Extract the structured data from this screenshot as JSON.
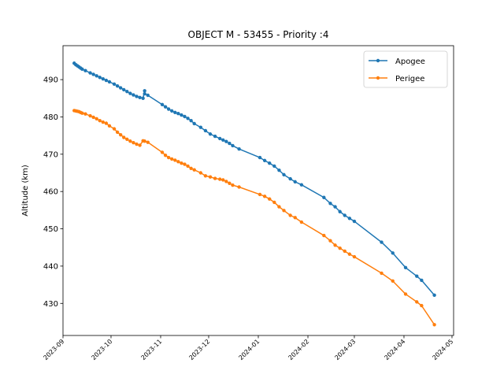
{
  "chart_data": {
    "type": "line",
    "title": "OBJECT M - 53455 - Priority :4",
    "xlabel": "",
    "ylabel": "Altitude (km)",
    "ylim": [
      421.4,
      499.1
    ],
    "xlim": [
      "2023-09-01",
      "2024-05-02"
    ],
    "yticks": [
      430,
      440,
      450,
      460,
      470,
      480,
      490
    ],
    "xticks": [
      "2023-09-01",
      "2023-10-01",
      "2023-11-01",
      "2023-12-01",
      "2024-01-01",
      "2024-02-01",
      "2024-03-01",
      "2024-04-01",
      "2024-05-01"
    ],
    "xtick_labels": [
      "2023-09",
      "2023-10",
      "2023-11",
      "2023-12",
      "2024-01",
      "2024-02",
      "2024-03",
      "2024-04",
      "2024-05"
    ],
    "legend_position": "top-right",
    "grid": false,
    "series": [
      {
        "name": "Apogee",
        "color": "#1f77b4",
        "points": [
          [
            "2023-09-08",
            494.4
          ],
          [
            "2023-09-09",
            494.0
          ],
          [
            "2023-09-10",
            493.7
          ],
          [
            "2023-09-11",
            493.4
          ],
          [
            "2023-09-12",
            493.1
          ],
          [
            "2023-09-13",
            492.8
          ],
          [
            "2023-09-15",
            492.4
          ],
          [
            "2023-09-18",
            491.8
          ],
          [
            "2023-09-20",
            491.4
          ],
          [
            "2023-09-22",
            491.0
          ],
          [
            "2023-09-24",
            490.6
          ],
          [
            "2023-09-26",
            490.2
          ],
          [
            "2023-09-28",
            489.8
          ],
          [
            "2023-09-30",
            489.4
          ],
          [
            "2023-10-03",
            488.8
          ],
          [
            "2023-10-05",
            488.3
          ],
          [
            "2023-10-07",
            487.8
          ],
          [
            "2023-10-09",
            487.3
          ],
          [
            "2023-10-11",
            486.8
          ],
          [
            "2023-10-13",
            486.3
          ],
          [
            "2023-10-15",
            485.9
          ],
          [
            "2023-10-17",
            485.5
          ],
          [
            "2023-10-19",
            485.2
          ],
          [
            "2023-10-21",
            485.0
          ],
          [
            "2023-10-22",
            487.0
          ],
          [
            "2023-10-22",
            486.2
          ],
          [
            "2023-10-24",
            485.8
          ],
          [
            "2023-11-02",
            483.3
          ],
          [
            "2023-11-04",
            482.7
          ],
          [
            "2023-11-06",
            482.1
          ],
          [
            "2023-11-08",
            481.6
          ],
          [
            "2023-11-10",
            481.2
          ],
          [
            "2023-11-12",
            480.9
          ],
          [
            "2023-11-14",
            480.5
          ],
          [
            "2023-11-16",
            480.1
          ],
          [
            "2023-11-18",
            479.6
          ],
          [
            "2023-11-20",
            479.0
          ],
          [
            "2023-11-22",
            478.2
          ],
          [
            "2023-11-26",
            477.2
          ],
          [
            "2023-11-29",
            476.3
          ],
          [
            "2023-12-02",
            475.4
          ],
          [
            "2023-12-05",
            474.8
          ],
          [
            "2023-12-08",
            474.2
          ],
          [
            "2023-12-10",
            473.8
          ],
          [
            "2023-12-12",
            473.4
          ],
          [
            "2023-12-14",
            472.9
          ],
          [
            "2023-12-16",
            472.3
          ],
          [
            "2023-12-20",
            471.4
          ],
          [
            "2024-01-02",
            469.1
          ],
          [
            "2024-01-05",
            468.3
          ],
          [
            "2024-01-08",
            467.6
          ],
          [
            "2024-01-11",
            466.8
          ],
          [
            "2024-01-14",
            465.7
          ],
          [
            "2024-01-17",
            464.5
          ],
          [
            "2024-01-21",
            463.4
          ],
          [
            "2024-01-24",
            462.6
          ],
          [
            "2024-01-28",
            461.8
          ],
          [
            "2024-02-11",
            458.4
          ],
          [
            "2024-02-15",
            456.8
          ],
          [
            "2024-02-18",
            455.9
          ],
          [
            "2024-02-21",
            454.6
          ],
          [
            "2024-02-24",
            453.6
          ],
          [
            "2024-02-27",
            452.8
          ],
          [
            "2024-03-01",
            452.0
          ],
          [
            "2024-03-18",
            446.4
          ],
          [
            "2024-03-25",
            443.5
          ],
          [
            "2024-04-02",
            439.6
          ],
          [
            "2024-04-09",
            437.3
          ],
          [
            "2024-04-12",
            436.2
          ],
          [
            "2024-04-20",
            432.2
          ]
        ]
      },
      {
        "name": "Perigee",
        "color": "#ff7f0e",
        "points": [
          [
            "2023-09-08",
            481.7
          ],
          [
            "2023-09-09",
            481.6
          ],
          [
            "2023-09-10",
            481.5
          ],
          [
            "2023-09-11",
            481.4
          ],
          [
            "2023-09-12",
            481.2
          ],
          [
            "2023-09-13",
            481.0
          ],
          [
            "2023-09-15",
            480.8
          ],
          [
            "2023-09-18",
            480.3
          ],
          [
            "2023-09-20",
            479.9
          ],
          [
            "2023-09-22",
            479.5
          ],
          [
            "2023-09-24",
            479.0
          ],
          [
            "2023-09-26",
            478.6
          ],
          [
            "2023-09-28",
            478.3
          ],
          [
            "2023-09-30",
            477.6
          ],
          [
            "2023-10-03",
            476.8
          ],
          [
            "2023-10-05",
            475.9
          ],
          [
            "2023-10-07",
            475.2
          ],
          [
            "2023-10-09",
            474.5
          ],
          [
            "2023-10-11",
            474.0
          ],
          [
            "2023-10-13",
            473.5
          ],
          [
            "2023-10-15",
            473.1
          ],
          [
            "2023-10-17",
            472.7
          ],
          [
            "2023-10-19",
            472.4
          ],
          [
            "2023-10-21",
            473.6
          ],
          [
            "2023-10-22",
            473.5
          ],
          [
            "2023-10-24",
            473.2
          ],
          [
            "2023-11-02",
            470.5
          ],
          [
            "2023-11-04",
            469.7
          ],
          [
            "2023-11-06",
            469.1
          ],
          [
            "2023-11-08",
            468.7
          ],
          [
            "2023-11-10",
            468.4
          ],
          [
            "2023-11-12",
            468.0
          ],
          [
            "2023-11-14",
            467.6
          ],
          [
            "2023-11-16",
            467.3
          ],
          [
            "2023-11-18",
            466.8
          ],
          [
            "2023-11-20",
            466.2
          ],
          [
            "2023-11-22",
            465.8
          ],
          [
            "2023-11-26",
            465.0
          ],
          [
            "2023-11-29",
            464.2
          ],
          [
            "2023-12-02",
            463.9
          ],
          [
            "2023-12-05",
            463.5
          ],
          [
            "2023-12-08",
            463.3
          ],
          [
            "2023-12-10",
            463.1
          ],
          [
            "2023-12-12",
            462.7
          ],
          [
            "2023-12-14",
            462.2
          ],
          [
            "2023-12-16",
            461.7
          ],
          [
            "2023-12-20",
            461.2
          ],
          [
            "2024-01-02",
            459.2
          ],
          [
            "2024-01-05",
            458.7
          ],
          [
            "2024-01-08",
            458.0
          ],
          [
            "2024-01-11",
            457.1
          ],
          [
            "2024-01-14",
            455.9
          ],
          [
            "2024-01-17",
            454.9
          ],
          [
            "2024-01-21",
            453.6
          ],
          [
            "2024-01-24",
            453.0
          ],
          [
            "2024-01-28",
            451.8
          ],
          [
            "2024-02-11",
            448.2
          ],
          [
            "2024-02-15",
            446.8
          ],
          [
            "2024-02-18",
            445.6
          ],
          [
            "2024-02-21",
            444.8
          ],
          [
            "2024-02-24",
            444.0
          ],
          [
            "2024-02-27",
            443.2
          ],
          [
            "2024-03-01",
            442.5
          ],
          [
            "2024-03-18",
            438.1
          ],
          [
            "2024-03-25",
            436.0
          ],
          [
            "2024-04-02",
            432.5
          ],
          [
            "2024-04-09",
            430.4
          ],
          [
            "2024-04-12",
            429.4
          ],
          [
            "2024-04-20",
            424.3
          ]
        ]
      }
    ]
  }
}
